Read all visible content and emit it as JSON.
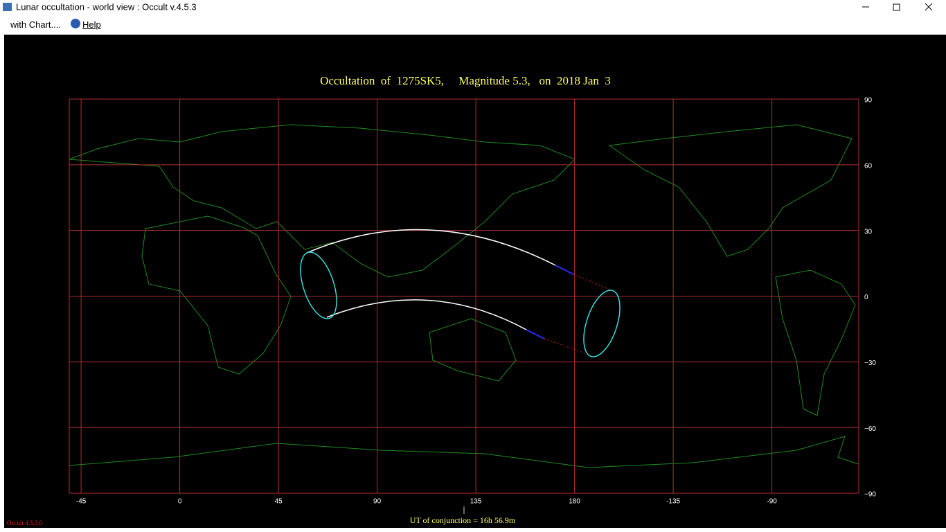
{
  "window": {
    "title": "Lunar occultation  -  world view : Occult v.4.5.3"
  },
  "menu": [
    "with Chart....",
    "Help"
  ],
  "map": {
    "title": "Occultation  of  1275SK5,     Magnitude 5.3,   on  2018 Jan  3",
    "xlim": [
      -50.4,
      309.6
    ],
    "ylim": [
      -90,
      90
    ],
    "xticks": [
      -45,
      0,
      45,
      90,
      135,
      180,
      {
        "value": 225,
        "label": "-135"
      },
      {
        "value": 270,
        "label": "-90"
      }
    ],
    "yticks": [
      90,
      60,
      30,
      0,
      {
        "value": -30,
        "label": "−30"
      },
      {
        "value": -60,
        "label": "−60"
      },
      {
        "value": -90,
        "label": "−90"
      }
    ],
    "conjunction": "UT of conjunction = 16h 56.9m"
  },
  "footer": {
    "version": "Occult 4.5.3.0"
  }
}
